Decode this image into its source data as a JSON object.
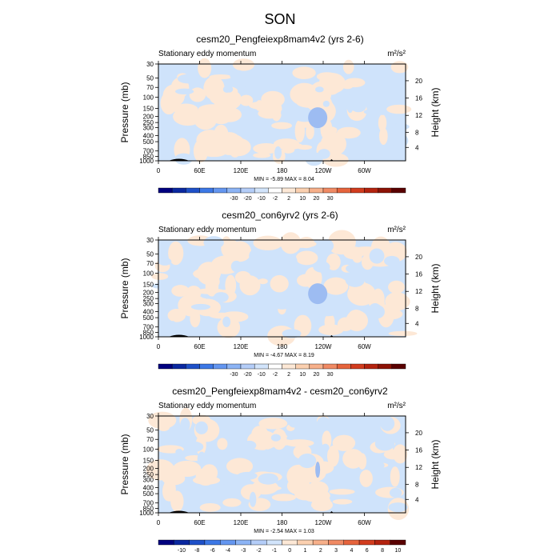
{
  "figure": {
    "title": "SON",
    "colors": {
      "light_blue": "#cfe3fb",
      "light_orange": "#fde8d6",
      "mid_blue": "#9dbcf2",
      "land": "#000000"
    }
  },
  "chart_data": [
    {
      "type": "heatmap",
      "title": "cesm20_Pengfeiexp8mam4v2 (yrs 2-6)",
      "field_label": "Stationary eddy momentum",
      "units": "m²/s²",
      "x_ticks": [
        "0",
        "60E",
        "120E",
        "180",
        "120W",
        "60W"
      ],
      "xlim": [
        0,
        360
      ],
      "ylabel": "Pressure (mb)",
      "y_ticks": [
        "30",
        "50",
        "70",
        "100",
        "150",
        "200",
        "250",
        "300",
        "400",
        "500",
        "700",
        "850",
        "1000"
      ],
      "ylim": [
        1000,
        30
      ],
      "y_scale": "log",
      "right_ylabel": "Height (km)",
      "right_ticks": [
        "4",
        "8",
        "12",
        "16",
        "20"
      ],
      "min_max_text": "MIN = -5.89  MAX = 8.04",
      "colorbar": {
        "labels": [
          "-30",
          "-20",
          "-10",
          "-2",
          "2",
          "10",
          "20",
          "30"
        ],
        "colors": [
          "#00007f",
          "#0a28a0",
          "#1e50c8",
          "#3c78e6",
          "#6496f0",
          "#8cb4f5",
          "#b4cdf8",
          "#d2e4fb",
          "#ffffff",
          "#fde8d6",
          "#fbd0b0",
          "#f7b08a",
          "#f08a64",
          "#e6643c",
          "#d23c1e",
          "#b4230f",
          "#8c1205",
          "#5a0000"
        ]
      }
    },
    {
      "type": "heatmap",
      "title": "cesm20_con6yrv2 (yrs 2-6)",
      "field_label": "Stationary eddy momentum",
      "units": "m²/s²",
      "x_ticks": [
        "0",
        "60E",
        "120E",
        "180",
        "120W",
        "60W"
      ],
      "xlim": [
        0,
        360
      ],
      "ylabel": "Pressure (mb)",
      "y_ticks": [
        "30",
        "50",
        "70",
        "100",
        "150",
        "200",
        "250",
        "300",
        "400",
        "500",
        "700",
        "850",
        "1000"
      ],
      "ylim": [
        1000,
        30
      ],
      "y_scale": "log",
      "right_ylabel": "Height (km)",
      "right_ticks": [
        "4",
        "8",
        "12",
        "16",
        "20"
      ],
      "min_max_text": "MIN = -4.67  MAX = 8.19",
      "colorbar": {
        "labels": [
          "-30",
          "-20",
          "-10",
          "-2",
          "2",
          "10",
          "20",
          "30"
        ],
        "colors": [
          "#00007f",
          "#0a28a0",
          "#1e50c8",
          "#3c78e6",
          "#6496f0",
          "#8cb4f5",
          "#b4cdf8",
          "#d2e4fb",
          "#ffffff",
          "#fde8d6",
          "#fbd0b0",
          "#f7b08a",
          "#f08a64",
          "#e6643c",
          "#d23c1e",
          "#b4230f",
          "#8c1205",
          "#5a0000"
        ]
      }
    },
    {
      "type": "heatmap",
      "title": "cesm20_Pengfeiexp8mam4v2 - cesm20_con6yrv2",
      "field_label": "Stationary eddy momentum",
      "units": "m²/s²",
      "x_ticks": [
        "0",
        "60E",
        "120E",
        "180",
        "120W",
        "60W"
      ],
      "xlim": [
        0,
        360
      ],
      "ylabel": "Pressure (mb)",
      "y_ticks": [
        "30",
        "50",
        "70",
        "100",
        "150",
        "200",
        "250",
        "300",
        "400",
        "500",
        "700",
        "850",
        "1000"
      ],
      "ylim": [
        1000,
        30
      ],
      "y_scale": "log",
      "right_ylabel": "Height (km)",
      "right_ticks": [
        "4",
        "8",
        "12",
        "16",
        "20"
      ],
      "min_max_text": "MIN = -2.54  MAX = 1.03",
      "colorbar": {
        "labels": [
          "-10",
          "-8",
          "-6",
          "-4",
          "-3",
          "-2",
          "-1",
          "0",
          "1",
          "2",
          "3",
          "4",
          "6",
          "8",
          "10"
        ],
        "colors": [
          "#00007f",
          "#0a28a0",
          "#1e50c8",
          "#3c78e6",
          "#6496f0",
          "#8cb4f5",
          "#b4cdf8",
          "#d2e4fb",
          "#fde8d6",
          "#fbd0b0",
          "#f7b08a",
          "#f08a64",
          "#e6643c",
          "#d23c1e",
          "#b4230f",
          "#5a0000"
        ]
      }
    }
  ]
}
